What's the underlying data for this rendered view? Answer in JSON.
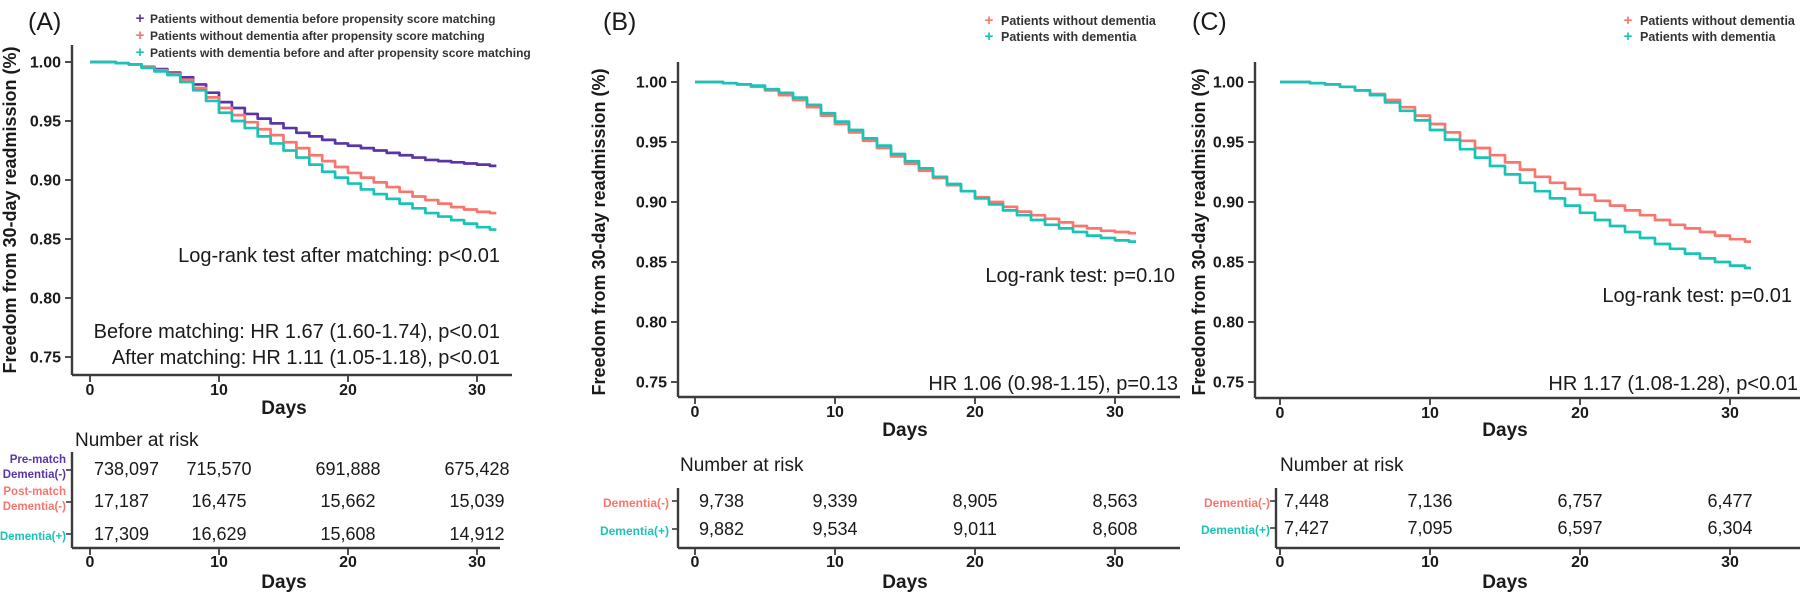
{
  "figure": {
    "ylabel": "Freedom from 30-day readmission (%)",
    "xlabel": "Days",
    "risk_title": "Number at risk",
    "colors": {
      "purple": "#5A35A8",
      "salmon": "#F8766D",
      "teal": "#1AC3B8",
      "axis": "#3B3B3B",
      "text": "#1A1A1A"
    }
  },
  "chart_data": [
    {
      "type": "line",
      "panel_label": "(A)",
      "ylabel": "Freedom from 30-day readmission (%)",
      "xlabel": "Days",
      "xlim": [
        0,
        31.5
      ],
      "ylim": [
        0.75,
        1.0
      ],
      "grid": false,
      "xticks": [
        0,
        10,
        20,
        30
      ],
      "yticks": [
        "1.00",
        "0.95",
        "0.90",
        "0.85",
        "0.80",
        "0.75"
      ],
      "legend_position": "top-center-left",
      "legend": [
        {
          "label": "Patients without dementia before propensity score matching",
          "color": "#5A35A8"
        },
        {
          "label": "Patients without dementia after propensity score matching",
          "color": "#F8766D"
        },
        {
          "label": "Patients with dementia before and after propensity score matching",
          "color": "#1AC3B8"
        }
      ],
      "annotations": [
        "Log-rank test after matching: p<0.01",
        "Before matching: HR 1.67 (1.60-1.74), p<0.01",
        "After matching: HR 1.11 (1.05-1.18), p<0.01"
      ],
      "series": [
        {
          "name": "Pre-match Dementia(-)",
          "color": "#5A35A8",
          "days": [
            0,
            1,
            2,
            3,
            4,
            5,
            6,
            7,
            8,
            9,
            10,
            11,
            12,
            13,
            14,
            15,
            16,
            17,
            18,
            19,
            20,
            21,
            22,
            23,
            24,
            25,
            26,
            27,
            28,
            29,
            30,
            31
          ],
          "values": [
            1.0,
            1.0,
            0.999,
            0.998,
            0.996,
            0.994,
            0.991,
            0.987,
            0.981,
            0.974,
            0.966,
            0.961,
            0.956,
            0.952,
            0.948,
            0.944,
            0.94,
            0.937,
            0.934,
            0.931,
            0.929,
            0.927,
            0.925,
            0.923,
            0.921,
            0.919,
            0.917,
            0.916,
            0.915,
            0.914,
            0.913,
            0.912
          ]
        },
        {
          "name": "Post-match Dementia(-)",
          "color": "#F8766D",
          "days": [
            0,
            1,
            2,
            3,
            4,
            5,
            6,
            7,
            8,
            9,
            10,
            11,
            12,
            13,
            14,
            15,
            16,
            17,
            18,
            19,
            20,
            21,
            22,
            23,
            24,
            25,
            26,
            27,
            28,
            29,
            30,
            31
          ],
          "values": [
            1.0,
            1.0,
            0.999,
            0.998,
            0.996,
            0.993,
            0.99,
            0.985,
            0.978,
            0.97,
            0.961,
            0.955,
            0.949,
            0.943,
            0.938,
            0.932,
            0.927,
            0.921,
            0.916,
            0.911,
            0.906,
            0.902,
            0.898,
            0.894,
            0.89,
            0.886,
            0.883,
            0.88,
            0.877,
            0.875,
            0.873,
            0.872
          ]
        },
        {
          "name": "Dementia(+)",
          "color": "#1AC3B8",
          "days": [
            0,
            1,
            2,
            3,
            4,
            5,
            6,
            7,
            8,
            9,
            10,
            11,
            12,
            13,
            14,
            15,
            16,
            17,
            18,
            19,
            20,
            21,
            22,
            23,
            24,
            25,
            26,
            27,
            28,
            29,
            30,
            31
          ],
          "values": [
            1.0,
            1.0,
            0.999,
            0.998,
            0.995,
            0.992,
            0.989,
            0.983,
            0.976,
            0.967,
            0.957,
            0.95,
            0.944,
            0.937,
            0.931,
            0.925,
            0.919,
            0.913,
            0.907,
            0.902,
            0.897,
            0.892,
            0.888,
            0.884,
            0.88,
            0.876,
            0.872,
            0.869,
            0.866,
            0.863,
            0.86,
            0.858
          ]
        }
      ],
      "risk_table": {
        "title": "Number at risk",
        "timepoints": [
          0,
          10,
          20,
          30
        ],
        "rows": [
          {
            "label": [
              "Pre-match",
              "Dementia(-)"
            ],
            "color": "#5A35A8",
            "values": [
              "738,097",
              "715,570",
              "691,888",
              "675,428"
            ]
          },
          {
            "label": [
              "Post-match",
              "Dementia(-)"
            ],
            "color": "#F8766D",
            "values": [
              "17,187",
              "16,475",
              "15,662",
              "15,039"
            ]
          },
          {
            "label": [
              "Dementia(+)"
            ],
            "color": "#1AC3B8",
            "values": [
              "17,309",
              "16,629",
              "15,608",
              "14,912"
            ]
          }
        ],
        "xlabel": "Days"
      }
    },
    {
      "type": "line",
      "panel_label": "(B)",
      "ylabel": "Freedom from 30-day readmission (%)",
      "xlabel": "Days",
      "xlim": [
        0,
        31.5
      ],
      "ylim": [
        0.75,
        1.0
      ],
      "grid": false,
      "xticks": [
        0,
        10,
        20,
        30
      ],
      "yticks": [
        "1.00",
        "0.95",
        "0.90",
        "0.85",
        "0.80",
        "0.75"
      ],
      "legend_position": "top-right",
      "legend": [
        {
          "label": "Patients without dementia",
          "color": "#F8766D"
        },
        {
          "label": "Patients with dementia",
          "color": "#1AC3B8"
        }
      ],
      "annotations": [
        "Log-rank test: p=0.10",
        "HR 1.06 (0.98-1.15), p=0.13"
      ],
      "series": [
        {
          "name": "Dementia(-)",
          "color": "#F8766D",
          "days": [
            0,
            1,
            2,
            3,
            4,
            5,
            6,
            7,
            8,
            9,
            10,
            11,
            12,
            13,
            14,
            15,
            16,
            17,
            18,
            19,
            20,
            21,
            22,
            23,
            24,
            25,
            26,
            27,
            28,
            29,
            30,
            31
          ],
          "values": [
            1.0,
            1.0,
            0.999,
            0.998,
            0.996,
            0.993,
            0.989,
            0.985,
            0.979,
            0.972,
            0.965,
            0.958,
            0.951,
            0.945,
            0.938,
            0.932,
            0.926,
            0.92,
            0.914,
            0.909,
            0.904,
            0.9,
            0.896,
            0.892,
            0.889,
            0.886,
            0.883,
            0.88,
            0.878,
            0.876,
            0.875,
            0.874
          ]
        },
        {
          "name": "Dementia(+)",
          "color": "#1AC3B8",
          "days": [
            0,
            1,
            2,
            3,
            4,
            5,
            6,
            7,
            8,
            9,
            10,
            11,
            12,
            13,
            14,
            15,
            16,
            17,
            18,
            19,
            20,
            21,
            22,
            23,
            24,
            25,
            26,
            27,
            28,
            29,
            30,
            31
          ],
          "values": [
            1.0,
            1.0,
            0.999,
            0.998,
            0.997,
            0.994,
            0.991,
            0.987,
            0.981,
            0.974,
            0.967,
            0.96,
            0.953,
            0.947,
            0.94,
            0.934,
            0.928,
            0.921,
            0.915,
            0.909,
            0.903,
            0.898,
            0.893,
            0.889,
            0.885,
            0.881,
            0.878,
            0.875,
            0.872,
            0.87,
            0.868,
            0.867
          ]
        }
      ],
      "risk_table": {
        "title": "Number at risk",
        "timepoints": [
          0,
          10,
          20,
          30
        ],
        "rows": [
          {
            "label": [
              "Dementia(-)"
            ],
            "color": "#F8766D",
            "values": [
              "9,738",
              "9,339",
              "8,905",
              "8,563"
            ]
          },
          {
            "label": [
              "Dementia(+)"
            ],
            "color": "#1AC3B8",
            "values": [
              "9,882",
              "9,534",
              "9,011",
              "8,608"
            ]
          }
        ],
        "xlabel": "Days"
      }
    },
    {
      "type": "line",
      "panel_label": "(C)",
      "ylabel": "Freedom from 30-day readmission (%)",
      "xlabel": "Days",
      "xlim": [
        0,
        31.5
      ],
      "ylim": [
        0.75,
        1.0
      ],
      "grid": false,
      "xticks": [
        0,
        10,
        20,
        30
      ],
      "yticks": [
        "1.00",
        "0.95",
        "0.90",
        "0.85",
        "0.80",
        "0.75"
      ],
      "legend_position": "top-right",
      "legend": [
        {
          "label": "Patients without dementia",
          "color": "#F8766D"
        },
        {
          "label": "Patients with dementia",
          "color": "#1AC3B8"
        }
      ],
      "annotations": [
        "Log-rank test: p=0.01",
        "HR 1.17 (1.08-1.28), p<0.01"
      ],
      "series": [
        {
          "name": "Dementia(-)",
          "color": "#F8766D",
          "days": [
            0,
            1,
            2,
            3,
            4,
            5,
            6,
            7,
            8,
            9,
            10,
            11,
            12,
            13,
            14,
            15,
            16,
            17,
            18,
            19,
            20,
            21,
            22,
            23,
            24,
            25,
            26,
            27,
            28,
            29,
            30,
            31
          ],
          "values": [
            1.0,
            1.0,
            0.999,
            0.998,
            0.996,
            0.993,
            0.99,
            0.985,
            0.979,
            0.972,
            0.965,
            0.958,
            0.951,
            0.945,
            0.939,
            0.933,
            0.927,
            0.921,
            0.916,
            0.911,
            0.906,
            0.901,
            0.897,
            0.893,
            0.889,
            0.885,
            0.881,
            0.878,
            0.875,
            0.872,
            0.869,
            0.867
          ]
        },
        {
          "name": "Dementia(+)",
          "color": "#1AC3B8",
          "days": [
            0,
            1,
            2,
            3,
            4,
            5,
            6,
            7,
            8,
            9,
            10,
            11,
            12,
            13,
            14,
            15,
            16,
            17,
            18,
            19,
            20,
            21,
            22,
            23,
            24,
            25,
            26,
            27,
            28,
            29,
            30,
            31
          ],
          "values": [
            1.0,
            1.0,
            0.999,
            0.998,
            0.996,
            0.993,
            0.989,
            0.983,
            0.976,
            0.968,
            0.96,
            0.952,
            0.944,
            0.937,
            0.93,
            0.923,
            0.916,
            0.909,
            0.903,
            0.897,
            0.891,
            0.885,
            0.88,
            0.875,
            0.87,
            0.865,
            0.861,
            0.857,
            0.853,
            0.85,
            0.847,
            0.845
          ]
        }
      ],
      "risk_table": {
        "title": "Number at risk",
        "timepoints": [
          0,
          10,
          20,
          30
        ],
        "rows": [
          {
            "label": [
              "Dementia(-)"
            ],
            "color": "#F8766D",
            "values": [
              "7,448",
              "7,136",
              "6,757",
              "6,477"
            ]
          },
          {
            "label": [
              "Dementia(+)"
            ],
            "color": "#1AC3B8",
            "values": [
              "7,427",
              "7,095",
              "6,597",
              "6,304"
            ]
          }
        ],
        "xlabel": "Days"
      }
    }
  ]
}
